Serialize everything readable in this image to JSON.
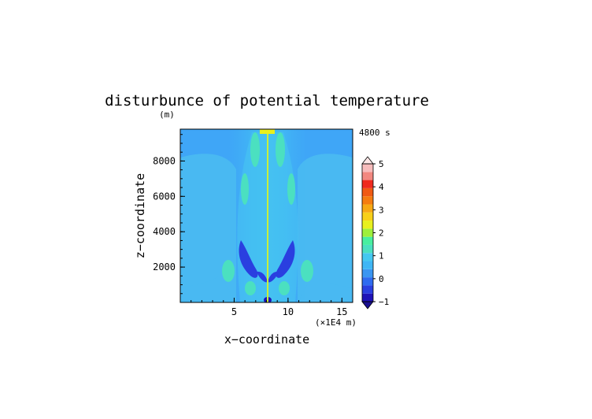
{
  "chart_data": {
    "type": "heatmap",
    "title": "disturbunce of potential temperature",
    "time_label": "4800 s",
    "xlabel": "x−coordinate",
    "ylabel": "z−coordinate",
    "x_unit": "(×1E4 m)",
    "y_unit": "(m)",
    "xlim": [
      0,
      16
    ],
    "ylim": [
      0,
      9800
    ],
    "x_ticks": [
      5,
      10,
      15
    ],
    "x_tick_labels": [
      "5",
      "10",
      "15"
    ],
    "y_ticks": [
      2000,
      4000,
      6000,
      8000
    ],
    "y_tick_labels": [
      "2000",
      "4000",
      "6000",
      "8000"
    ],
    "colorbar": {
      "labels": [
        "5",
        "4",
        "3",
        "2",
        "1",
        "0",
        "−1"
      ],
      "label_values": [
        5,
        4,
        3,
        2,
        1,
        0,
        -1
      ],
      "min": -1,
      "max": 5,
      "colors": [
        "#1f13b8",
        "#2a3fe0",
        "#2f6bf0",
        "#3a96f2",
        "#3fb6f5",
        "#45c8f0",
        "#4be0c0",
        "#48efa0",
        "#9ef03c",
        "#e8f01e",
        "#f8d018",
        "#f7a814",
        "#f57c10",
        "#f05a14",
        "#ef2a1e",
        "#f28880",
        "#f7bcbc"
      ],
      "under_color": "#1a1090",
      "over_color": "#ffe8e8"
    },
    "background_value": -0.1,
    "features": [
      {
        "kind": "background-band",
        "x_range": [
          0,
          16
        ],
        "z_range": [
          0,
          9800
        ],
        "value": -0.1
      },
      {
        "kind": "plume",
        "x_center": 8.1,
        "z_range": [
          0,
          9800
        ],
        "half_width_x": 2.8,
        "value": 0.2
      },
      {
        "kind": "cold-lobe",
        "x": 6.0,
        "z": 3000,
        "value": -0.8
      },
      {
        "kind": "cold-lobe",
        "x": 10.1,
        "z": 3000,
        "value": -0.8
      },
      {
        "kind": "cold-lobe",
        "x": 6.7,
        "z": 1800,
        "value": -0.8
      },
      {
        "kind": "cold-lobe",
        "x": 9.4,
        "z": 1800,
        "value": -0.8
      },
      {
        "kind": "warm-lobe",
        "x": 4.5,
        "z": 1800,
        "value": 1.0
      },
      {
        "kind": "warm-lobe",
        "x": 11.5,
        "z": 1800,
        "value": 1.0
      },
      {
        "kind": "warm-lobe",
        "x": 6.4,
        "z": 700,
        "value": 1.0
      },
      {
        "kind": "warm-lobe",
        "x": 9.6,
        "z": 700,
        "value": 1.0
      },
      {
        "kind": "warm-lobe",
        "x": 5.7,
        "z": 6000,
        "value": 1.0
      },
      {
        "kind": "warm-lobe",
        "x": 10.4,
        "z": 6000,
        "value": 1.0
      },
      {
        "kind": "warm-lobe",
        "x": 6.6,
        "z": 8200,
        "value": 1.0
      },
      {
        "kind": "warm-lobe",
        "x": 9.6,
        "z": 8200,
        "value": 1.0
      },
      {
        "kind": "axis-line",
        "x": 8.1,
        "z_range": [
          0,
          9800
        ],
        "value": 1.5
      },
      {
        "kind": "top-cap",
        "x": 8.1,
        "z": 9750,
        "value": 2.0
      }
    ]
  }
}
